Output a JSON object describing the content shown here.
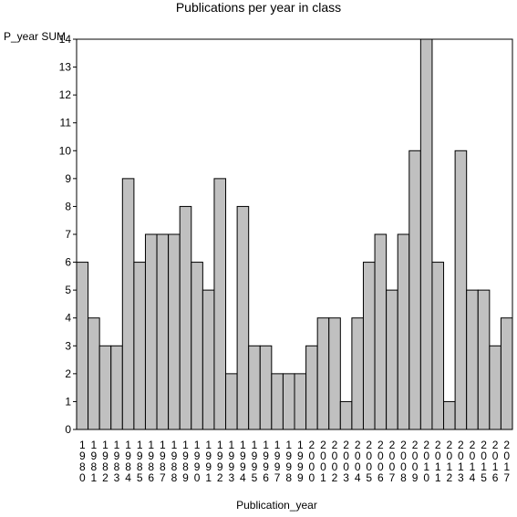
{
  "chart_data": {
    "type": "bar",
    "title": "Publications per year in class",
    "ylabel": "P_year SUM",
    "xlabel": "Publication_year",
    "ylim": [
      0,
      14
    ],
    "yticks": [
      0,
      1,
      2,
      3,
      4,
      5,
      6,
      7,
      8,
      9,
      10,
      11,
      12,
      13,
      14
    ],
    "grid": false,
    "categories": [
      "1980",
      "1981",
      "1982",
      "1983",
      "1984",
      "1985",
      "1986",
      "1987",
      "1988",
      "1989",
      "1990",
      "1991",
      "1992",
      "1993",
      "1994",
      "1995",
      "1996",
      "1997",
      "1998",
      "1999",
      "2000",
      "2001",
      "2002",
      "2003",
      "2004",
      "2005",
      "2006",
      "2007",
      "2008",
      "2009",
      "2010",
      "2011",
      "2012",
      "2013",
      "2014",
      "2015",
      "2016",
      "2017"
    ],
    "values": [
      6,
      4,
      3,
      3,
      9,
      6,
      7,
      7,
      7,
      8,
      6,
      5,
      9,
      2,
      8,
      3,
      3,
      2,
      2,
      2,
      3,
      4,
      4,
      1,
      4,
      6,
      7,
      5,
      7,
      10,
      14,
      6,
      1,
      10,
      5,
      5,
      3,
      4
    ],
    "colors": {
      "bar_fill": "#c0c0c0",
      "bar_stroke": "#000000",
      "axis": "#000000"
    }
  }
}
